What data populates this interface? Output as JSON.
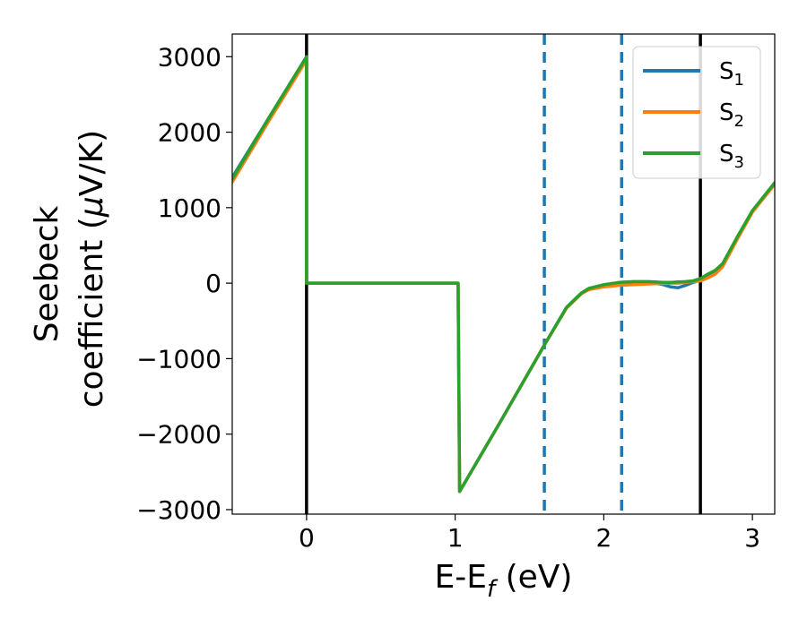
{
  "chart_data": {
    "type": "line",
    "title": "",
    "xlabel_main": "E-E",
    "xlabel_sub": "f",
    "xlabel_unit": " (eV)",
    "ylabel_line1": "Seebeck",
    "ylabel_line2_pre": "coefficient  (",
    "ylabel_line2_mu": "μ",
    "ylabel_line2_post": "V/K)",
    "xlim": [
      -0.5,
      3.15
    ],
    "ylim": [
      -3060,
      3300
    ],
    "xticks": [
      0,
      1,
      2,
      3
    ],
    "xtick_labels": [
      "0",
      "1",
      "2",
      "3"
    ],
    "yticks": [
      3000,
      2000,
      1000,
      0,
      -1000,
      -2000,
      -3000
    ],
    "ytick_labels": [
      "3000",
      "2000",
      "1000",
      "0",
      "−1000",
      "−2000",
      "−3000"
    ],
    "grid": false,
    "legend": {
      "position": "top-right",
      "entries": [
        {
          "base": "S",
          "sub": "1"
        },
        {
          "base": "S",
          "sub": "2"
        },
        {
          "base": "S",
          "sub": "3"
        }
      ]
    },
    "vlines": [
      {
        "x": 0.0,
        "style": "solid",
        "color": "#000000"
      },
      {
        "x": 1.6,
        "style": "dashed",
        "color": "#1f77b4"
      },
      {
        "x": 2.12,
        "style": "dashed",
        "color": "#1f77b4"
      },
      {
        "x": 2.65,
        "style": "solid",
        "color": "#000000"
      }
    ],
    "series": [
      {
        "name": "S1",
        "color": "#1f77b4",
        "x": [
          -0.5,
          -0.25,
          0.0,
          0.0,
          0.5,
          1.02,
          1.03,
          1.3,
          1.6,
          1.75,
          1.85,
          1.9,
          2.0,
          2.1,
          2.2,
          2.3,
          2.4,
          2.45,
          2.5,
          2.55,
          2.6,
          2.65,
          2.7,
          2.75,
          2.8,
          2.9,
          3.0,
          3.15
        ],
        "values": [
          1400,
          2200,
          3000,
          0,
          0,
          0,
          -2760,
          -1850,
          -820,
          -320,
          -130,
          -70,
          -30,
          0,
          10,
          15,
          -20,
          -50,
          -60,
          -30,
          10,
          40,
          80,
          130,
          230,
          600,
          950,
          1320
        ]
      },
      {
        "name": "S2",
        "color": "#ff7f0e",
        "x": [
          -0.5,
          -0.25,
          0.0,
          0.0,
          0.5,
          1.02,
          1.03,
          1.3,
          1.6,
          1.75,
          1.85,
          1.9,
          2.0,
          2.1,
          2.2,
          2.3,
          2.4,
          2.45,
          2.5,
          2.55,
          2.6,
          2.65,
          2.7,
          2.75,
          2.8,
          2.9,
          3.0,
          3.15
        ],
        "values": [
          1340,
          2160,
          2960,
          0,
          0,
          0,
          -2760,
          -1850,
          -820,
          -330,
          -140,
          -85,
          -50,
          -30,
          -20,
          -10,
          -5,
          0,
          0,
          10,
          20,
          30,
          70,
          120,
          220,
          590,
          940,
          1310
        ]
      },
      {
        "name": "S3",
        "color": "#2ca02c",
        "x": [
          -0.5,
          -0.25,
          0.0,
          0.0,
          0.5,
          1.02,
          1.03,
          1.3,
          1.6,
          1.75,
          1.85,
          1.9,
          2.0,
          2.1,
          2.2,
          2.3,
          2.4,
          2.45,
          2.5,
          2.55,
          2.6,
          2.65,
          2.7,
          2.75,
          2.8,
          2.9,
          3.0,
          3.15
        ],
        "values": [
          1380,
          2200,
          3000,
          0,
          0,
          0,
          -2760,
          -1850,
          -820,
          -320,
          -130,
          -70,
          -20,
          10,
          20,
          20,
          10,
          10,
          15,
          20,
          30,
          60,
          120,
          170,
          260,
          620,
          960,
          1330
        ]
      }
    ]
  }
}
